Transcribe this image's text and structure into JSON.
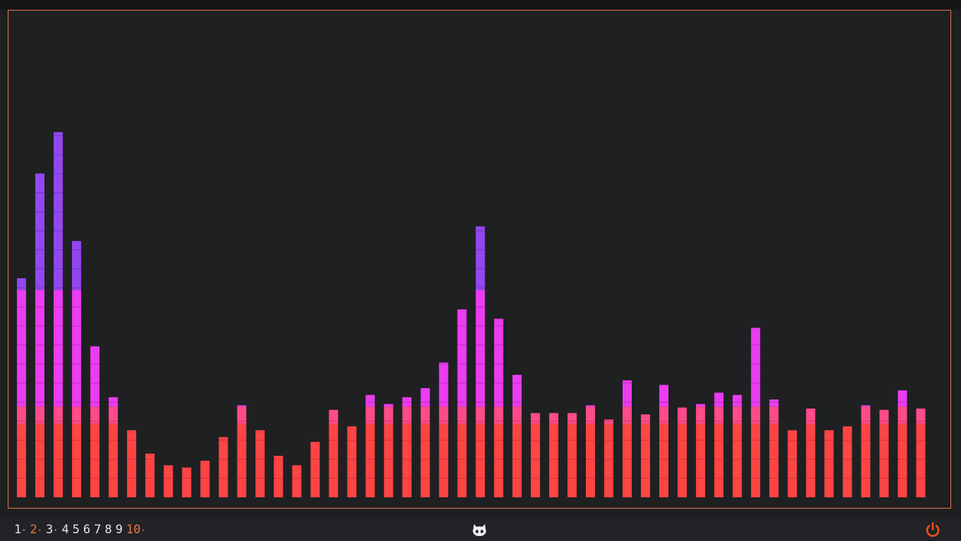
{
  "colors": {
    "border": "#e8784a",
    "low": "#ff4444",
    "mid": "#ff4b8a",
    "high": "#ea3cf0",
    "peak": "#9247f0",
    "active_workspace": "#e8784a",
    "power": "#e8501a"
  },
  "visualizer": {
    "segment_scale": 0.047,
    "thresholds": {
      "low": 0.227,
      "mid": 0.28,
      "high": 0.64
    },
    "levels": [
      0.676,
      1.0,
      1.127,
      0.791,
      0.466,
      0.309,
      0.207,
      0.135,
      0.099,
      0.092,
      0.113,
      0.186,
      0.284,
      0.207,
      0.128,
      0.099,
      0.171,
      0.27,
      0.219,
      0.316,
      0.288,
      0.309,
      0.337,
      0.416,
      0.58,
      0.836,
      0.551,
      0.378,
      0.26,
      0.26,
      0.26,
      0.284,
      0.24,
      0.361,
      0.256,
      0.347,
      0.277,
      0.288,
      0.323,
      0.316,
      0.523,
      0.302,
      0.207,
      0.274,
      0.207,
      0.219,
      0.284,
      0.27,
      0.33,
      0.274
    ]
  },
  "statusbar": {
    "workspaces": [
      {
        "label": "1",
        "occupied": true,
        "active": false
      },
      {
        "label": "2",
        "occupied": true,
        "active": true
      },
      {
        "label": "3",
        "occupied": true,
        "active": false
      },
      {
        "label": "4",
        "occupied": false,
        "active": false
      },
      {
        "label": "5",
        "occupied": false,
        "active": false
      },
      {
        "label": "6",
        "occupied": false,
        "active": false
      },
      {
        "label": "7",
        "occupied": false,
        "active": false
      },
      {
        "label": "8",
        "occupied": false,
        "active": false
      },
      {
        "label": "9",
        "occupied": false,
        "active": false
      },
      {
        "label": "10",
        "occupied": true,
        "active": true
      }
    ],
    "occupied_marker": "·",
    "center_icon": "github-cat-icon",
    "power_icon": "power-icon"
  }
}
